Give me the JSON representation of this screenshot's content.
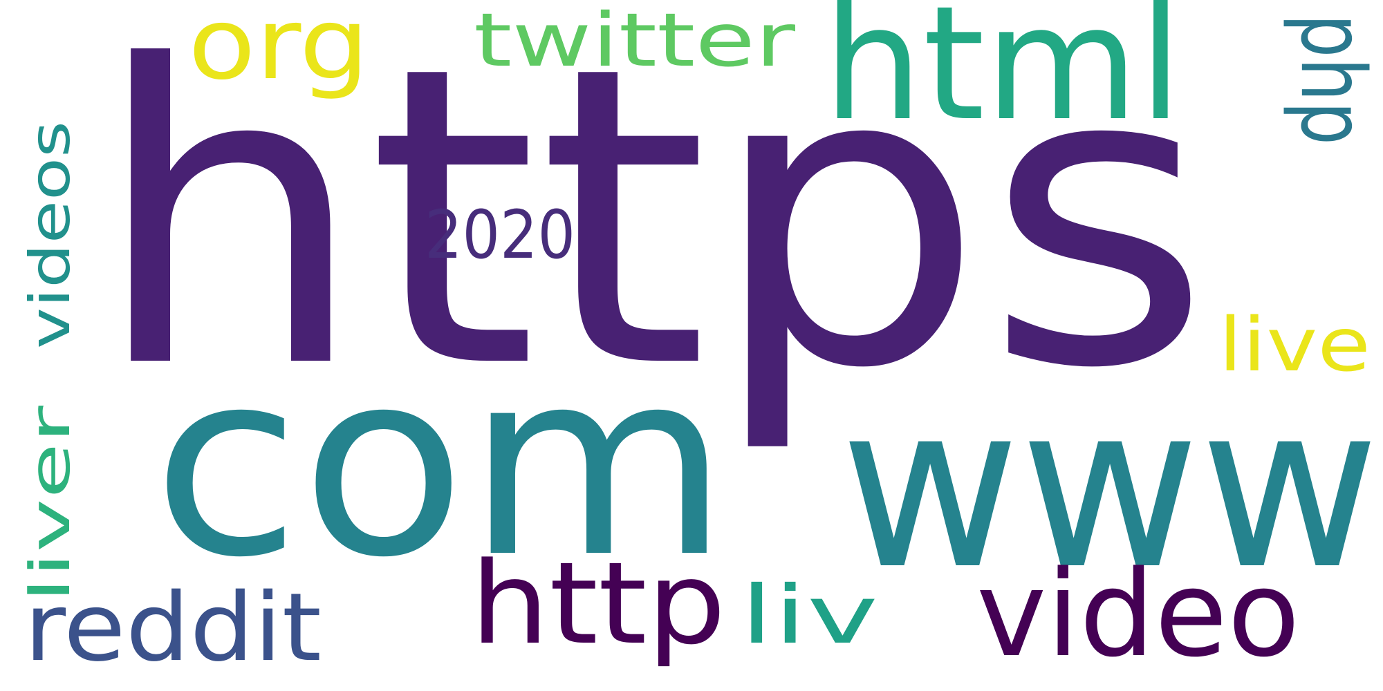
{
  "wordcloud": {
    "words": [
      {
        "key": "https",
        "text": "https",
        "color": "#482173"
      },
      {
        "key": "com",
        "text": "com",
        "color": "#25838E"
      },
      {
        "key": "www",
        "text": "www",
        "color": "#25838E"
      },
      {
        "key": "html",
        "text": "html",
        "color": "#22A884"
      },
      {
        "key": "org",
        "text": "org",
        "color": "#EAE51A"
      },
      {
        "key": "twitter",
        "text": "twitter",
        "color": "#5EC962"
      },
      {
        "key": "php",
        "text": "php",
        "color": "#2A788E"
      },
      {
        "key": "videos",
        "text": "videos",
        "color": "#21918C"
      },
      {
        "key": "liver",
        "text": "liver",
        "color": "#2DB27D"
      },
      {
        "key": "year",
        "text": "2020",
        "color": "#472D7B"
      },
      {
        "key": "live",
        "text": "live",
        "color": "#EAE51A"
      },
      {
        "key": "video",
        "text": "video",
        "color": "#440154"
      },
      {
        "key": "http",
        "text": "http",
        "color": "#440154"
      },
      {
        "key": "liv",
        "text": "liv",
        "color": "#1FA187"
      },
      {
        "key": "reddit",
        "text": "reddit",
        "color": "#3B528B"
      }
    ]
  }
}
